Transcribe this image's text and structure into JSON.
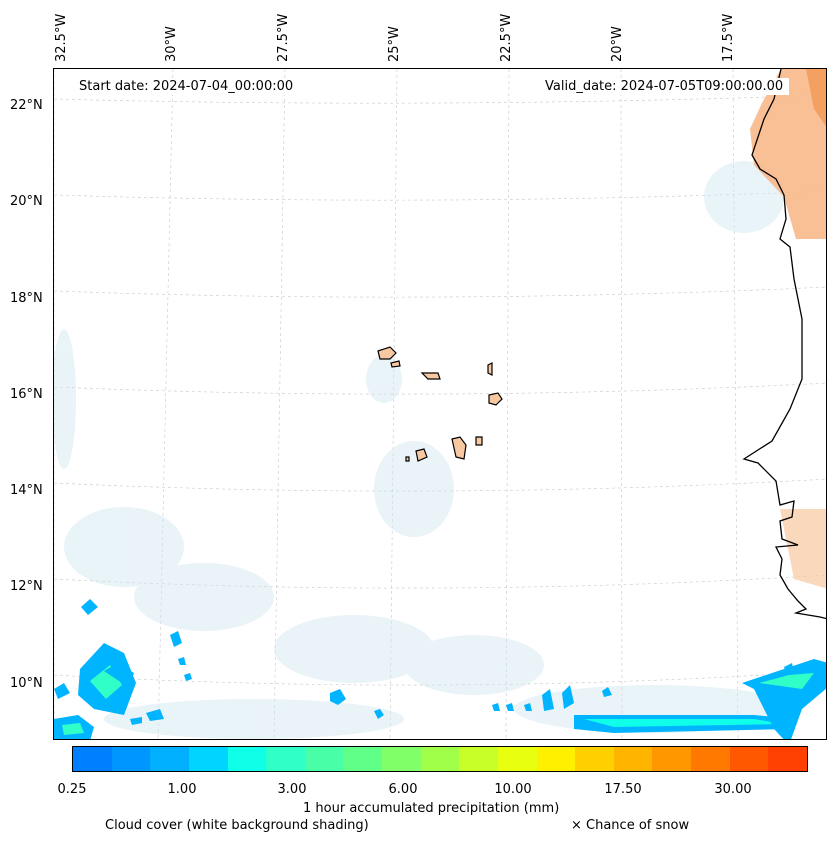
{
  "map": {
    "start_date": "Start date: 2024-07-04_00:00:00",
    "valid_date": "Valid_date: 2024-07-05T09:00:00.00",
    "lon_labels": [
      "32.5°W",
      "30°W",
      "27.5°W",
      "25°W",
      "22.5°W",
      "20°W",
      "17.5°W"
    ],
    "lat_labels": [
      "22°N",
      "20°N",
      "18°N",
      "16°N",
      "14°N",
      "12°N",
      "10°N"
    ]
  },
  "colorbar": {
    "colors": [
      "#0080ff",
      "#0096ff",
      "#00b0ff",
      "#00d4ff",
      "#10ffe8",
      "#30ffc8",
      "#48ffa8",
      "#60ff88",
      "#80ff68",
      "#a0ff48",
      "#c8ff28",
      "#e8ff10",
      "#fff000",
      "#ffd000",
      "#ffb400",
      "#ff9800",
      "#ff7800",
      "#ff5800",
      "#ff4000"
    ],
    "tick_labels": [
      "0.25",
      "1.00",
      "3.00",
      "6.00",
      "10.00",
      "17.50",
      "30.00"
    ],
    "label": "1 hour accumulated precipitation (mm)"
  },
  "legend": {
    "cloud_cover": "Cloud cover (white background shading)",
    "snow": "× Chance of snow"
  }
}
